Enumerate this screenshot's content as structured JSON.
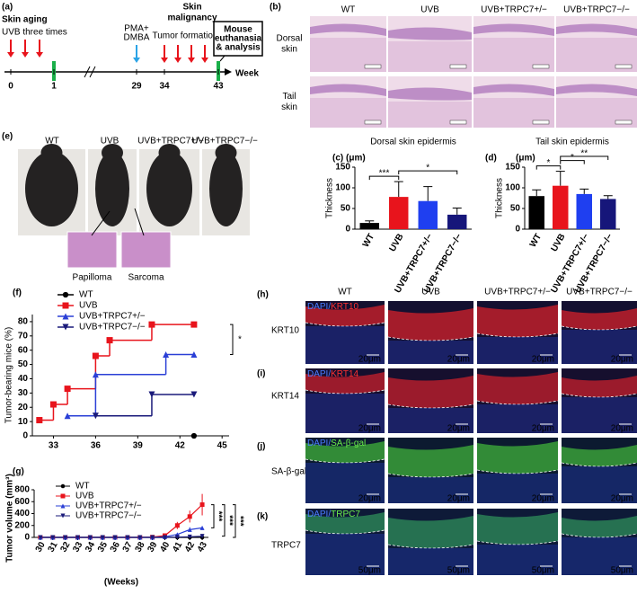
{
  "timeline": {
    "label": "(a)",
    "phase1": "Skin aging",
    "phase1_note": "UVB three times",
    "treatment": [
      "PMA+",
      "DMBA"
    ],
    "phase2": [
      "Skin",
      "malignancy"
    ],
    "phase2_note": "Tumor formation",
    "endpoint": [
      "Mouse",
      "euthanasia",
      "& analysis"
    ],
    "axis_label": "Week",
    "ticks": [
      0,
      1,
      29,
      34,
      43
    ]
  },
  "histology": {
    "label": "(b)",
    "columns": [
      "WT",
      "UVB",
      "UVB+TRPC7+/−",
      "UVB+TRPC7−/−"
    ],
    "rows": [
      [
        "Dorsal",
        "skin"
      ],
      [
        "Tail",
        "skin"
      ]
    ]
  },
  "mice": {
    "label": "(e)",
    "columns": [
      "WT",
      "UVB",
      "UVB+TRPC7+/−",
      "UVB+TRPC7−/−"
    ],
    "insets": [
      "Papilloma",
      "Sarcoma"
    ]
  },
  "chart_data": [
    {
      "type": "bar",
      "label": "(c)",
      "title": "Dorsal skin epidermis",
      "unit": "(μm)",
      "ylabel": "Thickness",
      "categories": [
        "WT",
        "UVB",
        "UVB+TRPC7+/−",
        "UVB+TRPC7−/−"
      ],
      "values": [
        15,
        78,
        68,
        35
      ],
      "errors": [
        5,
        37,
        35,
        16
      ],
      "colors": [
        "#000000",
        "#e8141c",
        "#1f3ff0",
        "#16167a"
      ],
      "ylim": [
        0,
        150
      ],
      "yticks": [
        0,
        50,
        100,
        150
      ],
      "annotations": [
        {
          "text": "***",
          "from": 0,
          "to": 1
        },
        {
          "text": "*",
          "from": 1,
          "to": 3
        }
      ]
    },
    {
      "type": "bar",
      "label": "(d)",
      "title": "Tail skin epidermis",
      "unit": "(μm)",
      "ylabel": "Thickness",
      "categories": [
        "WT",
        "UVB",
        "UVB+TRPC7+/−",
        "UVB+TRPC7−/−"
      ],
      "values": [
        80,
        105,
        85,
        73
      ],
      "errors": [
        15,
        35,
        12,
        8
      ],
      "colors": [
        "#000000",
        "#e8141c",
        "#1f3ff0",
        "#16167a"
      ],
      "ylim": [
        0,
        150
      ],
      "yticks": [
        0,
        50,
        100,
        150
      ],
      "annotations": [
        {
          "text": "*",
          "from": 0,
          "to": 1
        },
        {
          "text": "*",
          "from": 1,
          "to": 2
        },
        {
          "text": "**",
          "from": 1,
          "to": 3
        }
      ]
    },
    {
      "type": "step",
      "label": "(f)",
      "ylabel": "Tumor-bearing mice (%)",
      "xlim": [
        31.5,
        45.5
      ],
      "xticks": [
        33,
        36,
        39,
        42,
        45
      ],
      "ylim": [
        0,
        85
      ],
      "yticks": [
        0,
        10,
        20,
        30,
        40,
        50,
        60,
        70,
        80
      ],
      "series": [
        {
          "name": "WT",
          "color": "#000000",
          "marker": "circle",
          "x": [
            43
          ],
          "values": [
            0
          ]
        },
        {
          "name": "UVB",
          "color": "#e8141c",
          "marker": "square",
          "x": [
            32,
            33,
            34,
            36,
            37,
            40,
            43
          ],
          "values": [
            11,
            22,
            33,
            56,
            67,
            78,
            78
          ]
        },
        {
          "name": "UVB+TRPC7+/−",
          "color": "#2a3fd6",
          "marker": "triangle-up",
          "x": [
            34,
            36,
            41,
            43
          ],
          "values": [
            14,
            43,
            57,
            57
          ]
        },
        {
          "name": "UVB+TRPC7−/−",
          "color": "#1a1a7a",
          "marker": "triangle-down",
          "x": [
            36,
            40,
            43
          ],
          "values": [
            14,
            29,
            29
          ]
        }
      ],
      "annotations": [
        {
          "text": "*",
          "from": 1,
          "to": 2
        }
      ]
    },
    {
      "type": "line",
      "label": "(g)",
      "ylabel": "Tumor volume (mm³)",
      "xlabel": "(Weeks)",
      "x": [
        30,
        31,
        32,
        33,
        34,
        35,
        36,
        37,
        38,
        39,
        40,
        41,
        42,
        43
      ],
      "xlim": [
        29.5,
        43.5
      ],
      "xticks": [
        30,
        31,
        32,
        33,
        34,
        35,
        36,
        37,
        38,
        39,
        40,
        41,
        42,
        43
      ],
      "ylim": [
        0,
        800
      ],
      "yticks": [
        0,
        200,
        400,
        600,
        800
      ],
      "series": [
        {
          "name": "WT",
          "color": "#000000",
          "marker": "circle",
          "values": [
            0,
            0,
            0,
            0,
            0,
            0,
            0,
            0,
            0,
            0,
            0,
            0,
            0,
            0
          ]
        },
        {
          "name": "UVB",
          "color": "#e8141c",
          "marker": "square",
          "values": [
            0,
            0,
            0,
            0,
            0,
            0,
            0,
            0,
            0,
            5,
            30,
            200,
            350,
            550
          ],
          "errors": [
            0,
            0,
            0,
            0,
            0,
            0,
            0,
            0,
            0,
            5,
            20,
            60,
            100,
            180
          ]
        },
        {
          "name": "UVB+TRPC7+/−",
          "color": "#2a3fd6",
          "marker": "triangle-up",
          "values": [
            0,
            0,
            0,
            0,
            0,
            0,
            0,
            0,
            0,
            0,
            10,
            50,
            130,
            160
          ],
          "errors": [
            0,
            0,
            0,
            0,
            0,
            0,
            0,
            0,
            0,
            0,
            5,
            20,
            40,
            20
          ]
        },
        {
          "name": "UVB+TRPC7−/−",
          "color": "#1a1a7a",
          "marker": "triangle-down",
          "values": [
            0,
            0,
            0,
            0,
            0,
            0,
            0,
            0,
            0,
            0,
            0,
            5,
            10,
            20
          ],
          "errors": [
            0,
            0,
            0,
            0,
            0,
            0,
            0,
            0,
            0,
            0,
            0,
            3,
            5,
            8
          ]
        }
      ],
      "annotations": [
        {
          "text": "***",
          "from": 1,
          "to": 2
        },
        {
          "text": "***",
          "from": 1,
          "to": 3
        },
        {
          "text": "***",
          "from": 1,
          "to": 0
        }
      ]
    }
  ],
  "staining": {
    "columns": [
      "WT",
      "UVB",
      "UVB+TRPC7+/−",
      "UVB+TRPC7−/−"
    ],
    "rows": [
      {
        "label": "(h)",
        "marker": "KRT10",
        "stain": [
          "DAPI/",
          "KRT10"
        ],
        "scale": "20μm"
      },
      {
        "label": "(i)",
        "marker": "KRT14",
        "stain": [
          "DAPI/",
          "KRT14"
        ],
        "scale": "20μm"
      },
      {
        "label": "(j)",
        "marker": "SA-β-gal",
        "stain": [
          "DAPI/",
          "SA-β-gal"
        ],
        "scale": "20μm"
      },
      {
        "label": "(k)",
        "marker": "TRPC7",
        "stain": [
          "DAPI/",
          "TRPC7"
        ],
        "scale": "50μm"
      }
    ]
  }
}
